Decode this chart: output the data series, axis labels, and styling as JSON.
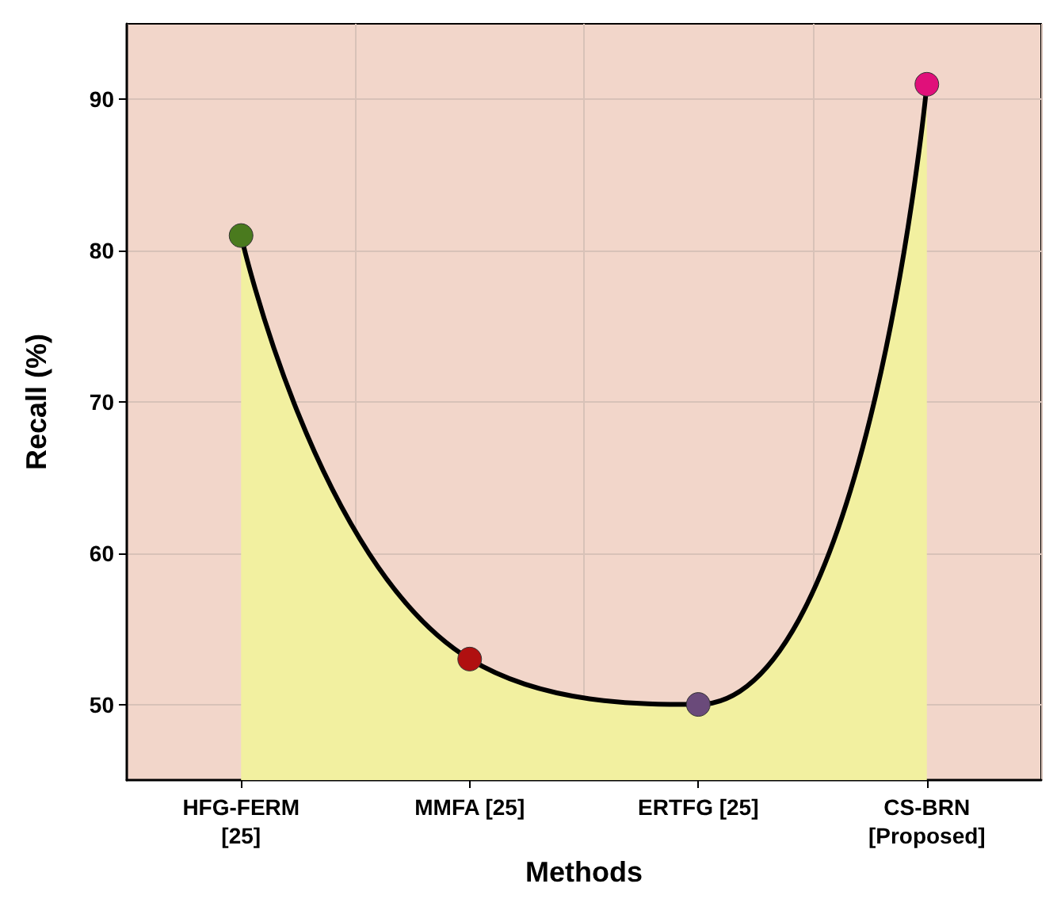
{
  "chart_data": {
    "type": "area",
    "xlabel": "Methods",
    "ylabel": "Recall (%)",
    "categories": [
      "HFG-FERM\n[25]",
      "MMFA [25]",
      "ERTFG [25]",
      "CS-BRN\n[Proposed]"
    ],
    "series": [
      {
        "color": "#000000",
        "colors": [
          "#4a7a1e",
          "#b01010",
          "#6a4a7a",
          "#e0107a"
        ],
        "values": [
          81,
          53,
          50,
          91
        ]
      }
    ],
    "ylim": [
      45,
      95
    ],
    "yticks": [
      50,
      60,
      70,
      80,
      90
    ],
    "grid": true,
    "marker": "circle",
    "line_style": "solid"
  }
}
